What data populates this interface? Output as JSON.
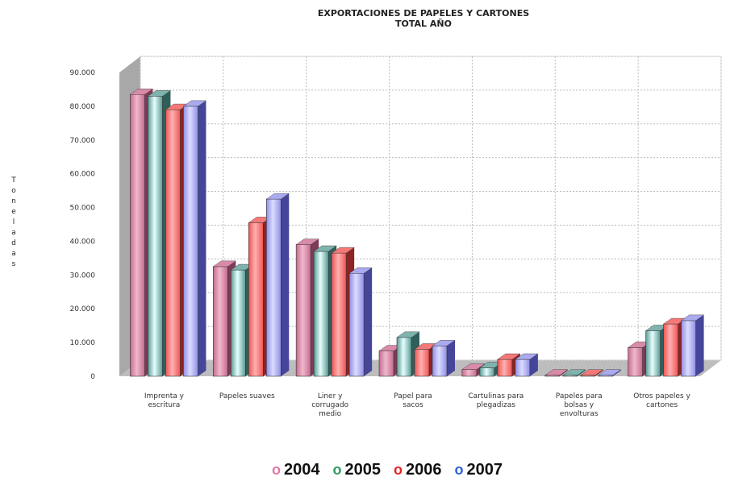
{
  "chart_data": {
    "type": "bar",
    "title": [
      "EXPORTACIONES DE PAPELES Y CARTONES",
      "TOTAL AÑO"
    ],
    "ylabel": "Toneladas",
    "ylim": [
      0,
      90000
    ],
    "y_ticks": [
      "0",
      "10.000",
      "20.000",
      "30.000",
      "40.000",
      "50.000",
      "60.000",
      "70.000",
      "80.000",
      "90.000"
    ],
    "grid": true,
    "legend_position": "bottom",
    "categories": [
      [
        "Imprenta y",
        "escritura"
      ],
      [
        "Papeles suaves"
      ],
      [
        "Liner y",
        "corrugado",
        "medio"
      ],
      [
        "Papel para",
        "sacos"
      ],
      [
        "Cartulinas para",
        "plegadizas"
      ],
      [
        "Papeles para",
        "bolsas y",
        "envolturas"
      ],
      [
        "Otros papeles y",
        "cartones"
      ]
    ],
    "series": [
      {
        "name": "2004",
        "values": [
          83500,
          32500,
          39000,
          7500,
          2000,
          300,
          8500
        ]
      },
      {
        "name": "2005",
        "values": [
          83000,
          31500,
          37000,
          11500,
          2500,
          300,
          13500
        ]
      },
      {
        "name": "2006",
        "values": [
          79000,
          45500,
          36500,
          8000,
          5000,
          300,
          15500
        ]
      },
      {
        "name": "2007",
        "values": [
          80000,
          52500,
          30500,
          9000,
          5000,
          300,
          16500
        ]
      }
    ]
  },
  "colors": {
    "2004": {
      "front": "#c46c8e",
      "light": "#f0b8cc",
      "side": "#7e3b57",
      "top": "#d98aa9"
    },
    "2005": {
      "front": "#5a9a92",
      "light": "#e6ffff",
      "side": "#2f5f5a",
      "top": "#7fb3ad"
    },
    "2006": {
      "front": "#ee5555",
      "light": "#ffb0b0",
      "side": "#8e2323",
      "top": "#f47878"
    },
    "2007": {
      "front": "#8f8fe6",
      "light": "#dcdcff",
      "side": "#45459a",
      "top": "#aaaaef"
    }
  },
  "legend": [
    {
      "marker": "o",
      "label": "2004",
      "color": "#e07aa8"
    },
    {
      "marker": "o",
      "label": "2005",
      "color": "#2e9b63"
    },
    {
      "marker": "o",
      "label": "2006",
      "color": "#e82222"
    },
    {
      "marker": "o",
      "label": "2007",
      "color": "#2f60e0"
    }
  ]
}
